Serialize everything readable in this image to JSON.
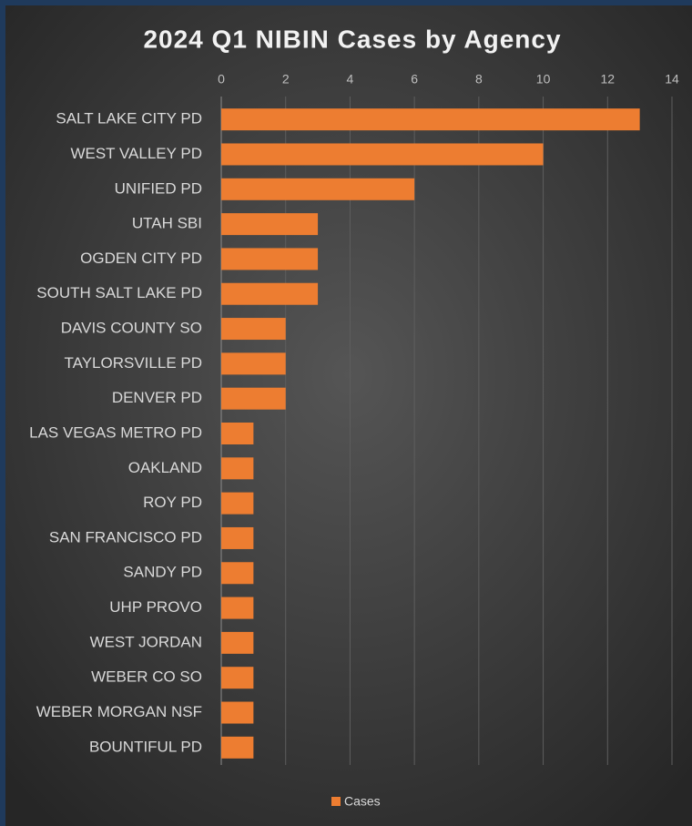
{
  "chart_data": {
    "type": "barh",
    "title": "2024 Q1 NIBIN Cases by Agency",
    "categories": [
      "SALT LAKE CITY PD",
      "WEST VALLEY PD",
      "UNIFIED PD",
      "UTAH SBI",
      "OGDEN CITY PD",
      "SOUTH SALT LAKE PD",
      "DAVIS COUNTY SO",
      "TAYLORSVILLE PD",
      "DENVER PD",
      "LAS VEGAS METRO PD",
      "OAKLAND",
      "ROY PD",
      "SAN FRANCISCO PD",
      "SANDY PD",
      "UHP PROVO",
      "WEST JORDAN",
      "WEBER CO SO",
      "WEBER MORGAN NSF",
      "BOUNTIFUL PD"
    ],
    "series": [
      {
        "name": "Cases",
        "color": "#ed7d31",
        "values": [
          13,
          10,
          6,
          3,
          3,
          3,
          2,
          2,
          2,
          1,
          1,
          1,
          1,
          1,
          1,
          1,
          1,
          1,
          1
        ]
      }
    ],
    "xlim": [
      0,
      14
    ],
    "xticks": [
      0,
      2,
      4,
      6,
      8,
      10,
      12,
      14
    ],
    "grid": true,
    "legend": "bottom"
  }
}
